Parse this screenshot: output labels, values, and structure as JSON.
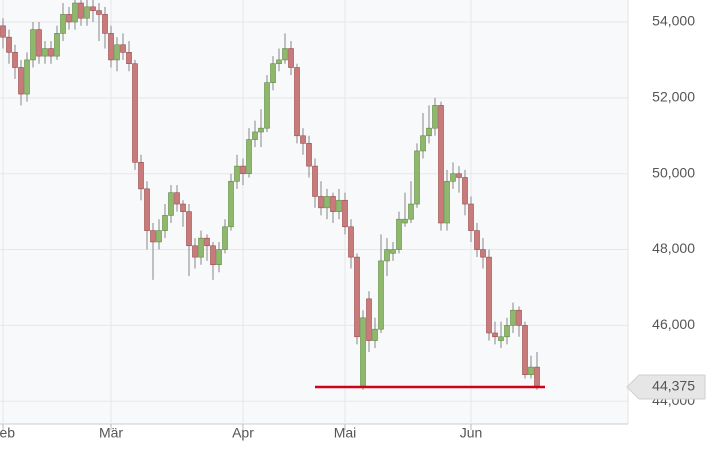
{
  "chart_data": {
    "type": "candlestick",
    "categories": [
      "Feb",
      null,
      null,
      null,
      null,
      null,
      null,
      null,
      null,
      null,
      null,
      null,
      null,
      null,
      null,
      null,
      null,
      null,
      "Mär",
      null,
      null,
      null,
      null,
      null,
      null,
      null,
      null,
      null,
      null,
      null,
      null,
      null,
      null,
      null,
      null,
      null,
      null,
      null,
      null,
      null,
      "Apr",
      null,
      null,
      null,
      null,
      null,
      null,
      null,
      null,
      null,
      null,
      null,
      null,
      null,
      null,
      null,
      null,
      "Mai",
      null,
      null,
      null,
      null,
      null,
      null,
      null,
      null,
      null,
      null,
      null,
      null,
      null,
      null,
      null,
      null,
      null,
      null,
      null,
      null,
      "Jun",
      null,
      null,
      null,
      null,
      null,
      null,
      null,
      null,
      null,
      null,
      null
    ],
    "open": [
      53900,
      53600,
      53200,
      52800,
      52100,
      53000,
      53800,
      53100,
      53300,
      53100,
      53700,
      54200,
      54000,
      54500,
      54100,
      54400,
      54300,
      54200,
      53700,
      53000,
      53400,
      53200,
      52900,
      50300,
      49600,
      48500,
      48200,
      48500,
      48900,
      49500,
      49200,
      49000,
      48100,
      47800,
      48300,
      48100,
      47600,
      48000,
      48600,
      49800,
      50200,
      50000,
      50900,
      51100,
      51200,
      52400,
      52900,
      53000,
      53300,
      52800,
      51000,
      50800,
      50200,
      49400,
      49100,
      49400,
      49000,
      49300,
      48600,
      47800,
      44400,
      46700,
      45600,
      45900,
      47700,
      47900,
      48000,
      48700,
      48800,
      49200,
      50600,
      51000,
      51200,
      51800,
      48700,
      49800,
      50000,
      49900,
      49200,
      48500,
      48000,
      47800,
      45800,
      45600,
      45700,
      46000,
      46400,
      46000,
      44700,
      44900
    ],
    "high": [
      54100,
      53800,
      53400,
      53000,
      53200,
      54000,
      54000,
      53500,
      53500,
      53900,
      54500,
      54400,
      54700,
      54700,
      54600,
      54600,
      54500,
      54400,
      53900,
      53600,
      53700,
      53500,
      53000,
      50500,
      49800,
      48700,
      48800,
      49200,
      49700,
      49700,
      49300,
      49200,
      48300,
      48500,
      48400,
      48200,
      48200,
      48800,
      50000,
      50500,
      50400,
      51200,
      51400,
      51700,
      52600,
      53100,
      53300,
      53700,
      53500,
      52900,
      51200,
      51000,
      50400,
      49800,
      49600,
      49500,
      49600,
      49500,
      48800,
      47900,
      46400,
      46900,
      46200,
      48400,
      48300,
      48200,
      49000,
      49500,
      49800,
      50800,
      51600,
      51800,
      52000,
      51900,
      50100,
      50300,
      50200,
      50100,
      49400,
      48700,
      48300,
      48000,
      46100,
      46100,
      46200,
      46600,
      46500,
      46100,
      45200,
      45300
    ],
    "low": [
      53300,
      52900,
      52500,
      51800,
      51900,
      52800,
      52900,
      52900,
      52900,
      53000,
      53500,
      53800,
      53800,
      53900,
      53900,
      54000,
      53500,
      53300,
      52800,
      52700,
      53000,
      52700,
      50100,
      49300,
      48000,
      47200,
      48000,
      48300,
      48700,
      49000,
      48600,
      47300,
      47500,
      47600,
      47700,
      47200,
      47400,
      47900,
      48500,
      49600,
      49700,
      49900,
      50700,
      50700,
      51100,
      52200,
      52700,
      52900,
      52600,
      50800,
      50500,
      49900,
      49100,
      48900,
      48800,
      48700,
      48800,
      48400,
      47500,
      45500,
      44300,
      45300,
      45400,
      45800,
      47300,
      47700,
      47900,
      48600,
      48700,
      49100,
      50400,
      50800,
      51000,
      48500,
      48500,
      49600,
      49500,
      48900,
      48200,
      47800,
      47500,
      45600,
      45500,
      45400,
      45500,
      45800,
      45700,
      44600,
      44600,
      44300
    ],
    "close": [
      53600,
      53200,
      52800,
      52100,
      53000,
      53800,
      53100,
      53300,
      53100,
      53700,
      54200,
      54000,
      54500,
      54100,
      54400,
      54300,
      54200,
      53700,
      53000,
      53400,
      53200,
      52900,
      50300,
      49600,
      48500,
      48200,
      48500,
      48900,
      49500,
      49200,
      49000,
      48100,
      47800,
      48300,
      48100,
      47600,
      48000,
      48600,
      49800,
      50200,
      50000,
      50900,
      51100,
      51200,
      52400,
      52900,
      53000,
      53300,
      52800,
      51000,
      50800,
      50200,
      49400,
      49100,
      49400,
      49000,
      49300,
      48600,
      47800,
      45700,
      46200,
      45600,
      45900,
      47700,
      48000,
      48000,
      48800,
      48800,
      49200,
      50600,
      51000,
      51200,
      51800,
      48700,
      49800,
      50000,
      49900,
      49200,
      48500,
      48000,
      47800,
      45800,
      45700,
      45700,
      46000,
      46400,
      46000,
      44700,
      44900,
      44375
    ],
    "up_color": "#8fb86c",
    "down_color": "#c97b7b",
    "support_color": "#d0021b",
    "ylim": [
      43400,
      54580
    ],
    "yticks": [
      {
        "value": 44000,
        "label": "44,000"
      },
      {
        "value": 46000,
        "label": "46,000"
      },
      {
        "value": 48000,
        "label": "48,000"
      },
      {
        "value": 50000,
        "label": "50,000"
      },
      {
        "value": 52000,
        "label": "52,000"
      },
      {
        "value": 54000,
        "label": "54,000"
      }
    ],
    "last_price": {
      "value": 44375,
      "label": "44,375"
    },
    "grid": true
  }
}
